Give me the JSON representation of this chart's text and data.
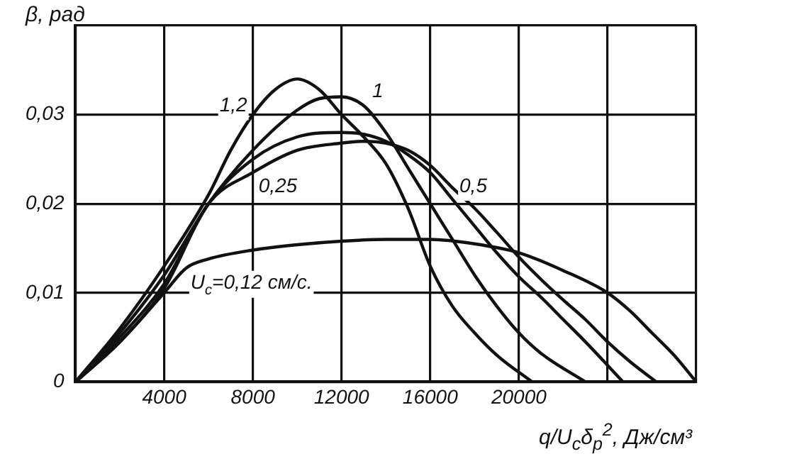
{
  "chart_data": {
    "type": "line",
    "xlabel": "q/U$_{c}$δ$_{p}$$^{2}$, Дж/см³",
    "ylabel": "β, рад",
    "xlim": [
      0,
      28000
    ],
    "ylim": [
      0,
      0.04
    ],
    "xticks": [
      {
        "value": 0,
        "label": null
      },
      4000,
      8000,
      12000,
      16000,
      20000,
      {
        "value": 24000,
        "label": null
      },
      {
        "value": 28000,
        "label": null
      }
    ],
    "yticks": [
      {
        "value": 0,
        "label": "0"
      },
      {
        "value": 0.01,
        "label": "0,01"
      },
      {
        "value": 0.02,
        "label": "0,02"
      },
      {
        "value": 0.03,
        "label": "0,03"
      },
      {
        "value": 0.04,
        "label": null
      }
    ],
    "grid": true,
    "legend": false,
    "marker": "none",
    "line_style": "solid",
    "series": [
      {
        "name": "1,2",
        "color": "#111111",
        "x": [
          0,
          2000,
          4000,
          6000,
          7000,
          8000,
          9000,
          10000,
          11000,
          12000,
          13000,
          14000,
          15000,
          16000,
          17000,
          18000,
          19000,
          20600
        ],
        "values": [
          0,
          0.006,
          0.013,
          0.021,
          0.026,
          0.03,
          0.0328,
          0.034,
          0.0328,
          0.03,
          0.0275,
          0.0245,
          0.0195,
          0.013,
          0.0085,
          0.0055,
          0.003,
          0
        ]
      },
      {
        "name": "1",
        "color": "#111111",
        "x": [
          0,
          2000,
          4000,
          6000,
          8000,
          10000,
          11000,
          12000,
          13000,
          14000,
          15000,
          16000,
          17000,
          18000,
          19000,
          20000,
          21000,
          23000
        ],
        "values": [
          0,
          0.0055,
          0.012,
          0.02,
          0.026,
          0.0305,
          0.0318,
          0.032,
          0.031,
          0.028,
          0.024,
          0.02,
          0.016,
          0.012,
          0.0085,
          0.0055,
          0.0032,
          0
        ]
      },
      {
        "name": "0,5",
        "color": "#111111",
        "x": [
          0,
          2000,
          4000,
          6000,
          8000,
          10000,
          12000,
          13000,
          14000,
          15000,
          16000,
          17000,
          18000,
          19000,
          20000,
          21000,
          22000,
          23000,
          24700
        ],
        "values": [
          0,
          0.005,
          0.011,
          0.02,
          0.025,
          0.0275,
          0.028,
          0.0278,
          0.027,
          0.0255,
          0.0235,
          0.0205,
          0.0175,
          0.0145,
          0.0118,
          0.0095,
          0.007,
          0.0045,
          0
        ]
      },
      {
        "name": "0,25",
        "color": "#111111",
        "x": [
          0,
          2000,
          4000,
          6000,
          8000,
          10000,
          12000,
          13000,
          14000,
          15000,
          16000,
          17000,
          18000,
          19000,
          20000,
          21000,
          22000,
          23000,
          24000,
          25000,
          26200
        ],
        "values": [
          0,
          0.0045,
          0.0105,
          0.02,
          0.0235,
          0.026,
          0.0268,
          0.027,
          0.0268,
          0.026,
          0.0243,
          0.0218,
          0.0195,
          0.0168,
          0.014,
          0.0115,
          0.0092,
          0.007,
          0.0045,
          0.0023,
          0
        ]
      },
      {
        "name": "U$_{c}$=0,12 см/с.",
        "color": "#111111",
        "x": [
          0,
          2000,
          4000,
          5000,
          6000,
          8000,
          10000,
          12000,
          14000,
          16000,
          18000,
          20000,
          22000,
          24000,
          25000,
          26000,
          27000,
          28000
        ],
        "values": [
          0,
          0.0045,
          0.01,
          0.0128,
          0.0138,
          0.0148,
          0.0154,
          0.0158,
          0.016,
          0.016,
          0.0155,
          0.0145,
          0.0125,
          0.01,
          0.008,
          0.0055,
          0.003,
          0
        ]
      }
    ]
  }
}
